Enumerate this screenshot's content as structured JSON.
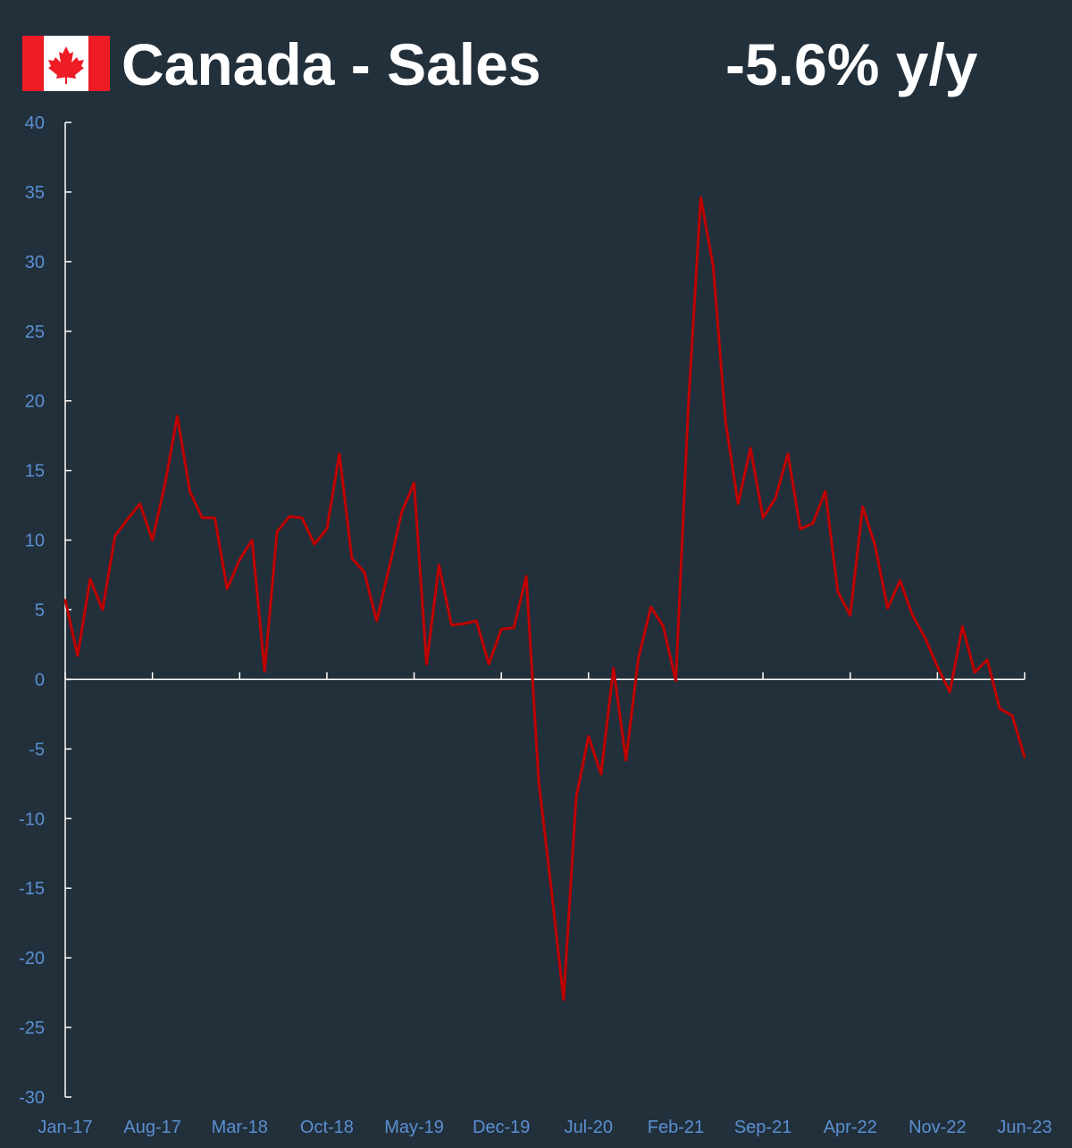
{
  "header": {
    "title": "Canada - Sales",
    "headline_value": "-5.6% y/y",
    "flag_icon": "canada-flag-icon"
  },
  "colors": {
    "background": "#22303c",
    "line": "#c00000",
    "axis": "#ffffff",
    "tick_label": "#5b8fd0",
    "flag_red": "#ee1c25"
  },
  "chart_data": {
    "type": "line",
    "title": "Canada - Sales",
    "xlabel": "",
    "ylabel": "",
    "ylim": [
      -30,
      40
    ],
    "yticks": [
      40,
      35,
      30,
      25,
      20,
      15,
      10,
      5,
      0,
      -5,
      -10,
      -15,
      -20,
      -25,
      -30
    ],
    "xtick_labels": [
      "Jan-17",
      "Aug-17",
      "Mar-18",
      "Oct-18",
      "May-19",
      "Dec-19",
      "Jul-20",
      "Feb-21",
      "Sep-21",
      "Apr-22",
      "Nov-22",
      "Jun-23"
    ],
    "grid": false,
    "legend": "none",
    "x_start": "Jan-17",
    "x_end": "Jun-23",
    "frequency": "monthly",
    "series": [
      {
        "values": [
          5.7,
          1.7,
          7.2,
          5.0,
          10.3,
          11.5,
          12.6,
          10.0,
          14.0,
          18.9,
          13.5,
          11.6,
          11.6,
          6.5,
          8.6,
          10.0,
          0.6,
          10.6,
          11.7,
          11.6,
          9.7,
          10.8,
          16.2,
          8.7,
          7.7,
          4.2,
          8.0,
          12.0,
          14.1,
          1.1,
          8.2,
          3.9,
          4.0,
          4.2,
          1.1,
          3.6,
          3.7,
          7.4,
          -7.3,
          -15.0,
          -23.0,
          -8.5,
          -4.1,
          -6.8,
          0.8,
          -5.8,
          1.5,
          5.2,
          3.8,
          -0.1,
          19.5,
          34.6,
          29.7,
          18.5,
          12.6,
          16.6,
          11.6,
          13.0,
          16.2,
          10.8,
          11.2,
          13.5,
          6.3,
          4.6,
          12.4,
          9.6,
          5.1,
          7.1,
          4.6,
          3.0,
          0.9,
          -0.9,
          3.8,
          0.5,
          1.4,
          -2.1,
          -2.6,
          -5.6
        ]
      }
    ]
  }
}
